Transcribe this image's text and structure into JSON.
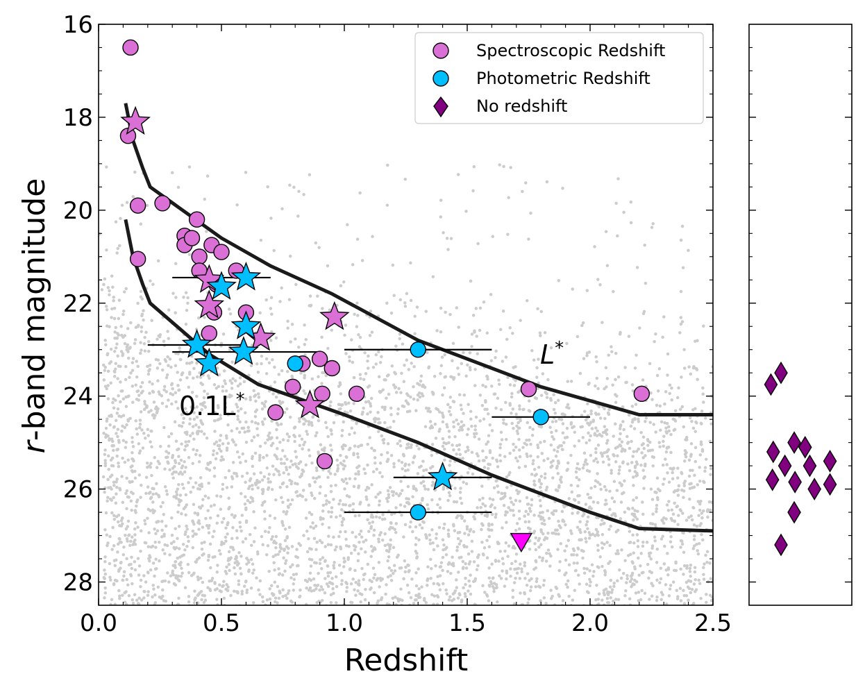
{
  "chart_data": {
    "type": "scatter",
    "xlabel": "Redshift",
    "ylabel_prefix": "r",
    "ylabel_rest": "-band magnitude",
    "xlim": [
      0.0,
      2.5
    ],
    "ylim": [
      28.5,
      16.0
    ],
    "x_ticks": [
      "0.0",
      "0.5",
      "1.0",
      "1.5",
      "2.0",
      "2.5"
    ],
    "x_tick_values": [
      0.0,
      0.5,
      1.0,
      1.5,
      2.0,
      2.5
    ],
    "y_ticks": [
      "16",
      "18",
      "20",
      "22",
      "24",
      "26",
      "28"
    ],
    "y_tick_values": [
      16,
      18,
      20,
      22,
      24,
      26,
      28
    ],
    "legend": {
      "position": "top-right",
      "entries": [
        {
          "label": "Spectroscopic Redshift",
          "marker": "circle",
          "color": "#da70d6"
        },
        {
          "label": "Photometric Redshift",
          "marker": "circle",
          "color": "#00bfff"
        },
        {
          "label": "No redshift",
          "marker": "diamond",
          "color": "#800080"
        }
      ]
    },
    "curves": [
      {
        "name": "L*",
        "label_main": "L",
        "label_sup": "*",
        "x": [
          0.11,
          0.14,
          0.18,
          0.21,
          0.5,
          0.7,
          0.95,
          1.3,
          1.8,
          2.2,
          2.5
        ],
        "y": [
          17.7,
          18.5,
          19.1,
          19.5,
          20.6,
          21.2,
          21.8,
          22.8,
          23.8,
          24.4,
          24.4
        ]
      },
      {
        "name": "0.1L*",
        "label_main": "0.1L",
        "label_sup": "*",
        "x": [
          0.11,
          0.14,
          0.18,
          0.21,
          0.45,
          0.65,
          1.0,
          1.3,
          1.6,
          1.8,
          2.0,
          2.2,
          2.5
        ],
        "y": [
          20.2,
          21.0,
          21.6,
          22.0,
          23.1,
          23.75,
          24.4,
          25.0,
          25.7,
          26.1,
          26.5,
          26.85,
          26.9
        ]
      }
    ],
    "spectroscopic_circles": [
      {
        "x": 0.13,
        "y": 16.5
      },
      {
        "x": 0.12,
        "y": 18.4
      },
      {
        "x": 0.16,
        "y": 19.9
      },
      {
        "x": 0.16,
        "y": 21.05
      },
      {
        "x": 0.26,
        "y": 19.85
      },
      {
        "x": 0.4,
        "y": 20.2
      },
      {
        "x": 0.35,
        "y": 20.55
      },
      {
        "x": 0.35,
        "y": 20.75
      },
      {
        "x": 0.38,
        "y": 20.6
      },
      {
        "x": 0.46,
        "y": 20.75
      },
      {
        "x": 0.5,
        "y": 20.9
      },
      {
        "x": 0.41,
        "y": 21.0
      },
      {
        "x": 0.41,
        "y": 21.3
      },
      {
        "x": 0.56,
        "y": 21.3
      },
      {
        "x": 0.48,
        "y": 21.6
      },
      {
        "x": 0.47,
        "y": 22.2
      },
      {
        "x": 0.6,
        "y": 22.2
      },
      {
        "x": 0.45,
        "y": 22.65
      },
      {
        "x": 0.83,
        "y": 23.3
      },
      {
        "x": 0.9,
        "y": 23.2
      },
      {
        "x": 0.95,
        "y": 23.4
      },
      {
        "x": 0.79,
        "y": 23.8
      },
      {
        "x": 0.91,
        "y": 23.95
      },
      {
        "x": 1.05,
        "y": 23.95
      },
      {
        "x": 0.72,
        "y": 24.35
      },
      {
        "x": 0.92,
        "y": 25.4
      },
      {
        "x": 1.75,
        "y": 23.85
      },
      {
        "x": 2.21,
        "y": 23.95
      }
    ],
    "spectroscopic_stars": [
      {
        "x": 0.15,
        "y": 18.1
      },
      {
        "x": 0.45,
        "y": 21.5
      },
      {
        "x": 0.45,
        "y": 22.05
      },
      {
        "x": 0.66,
        "y": 22.75
      },
      {
        "x": 0.96,
        "y": 22.3
      },
      {
        "x": 0.86,
        "y": 24.2
      }
    ],
    "photometric_circles": [
      {
        "x": 0.8,
        "y": 23.3
      },
      {
        "x": 1.3,
        "y": 23.0,
        "xerr": [
          1.0,
          1.6
        ]
      },
      {
        "x": 1.8,
        "y": 24.45,
        "xerr": [
          1.6,
          2.0
        ]
      },
      {
        "x": 1.3,
        "y": 26.5,
        "xerr": [
          1.0,
          1.6
        ]
      }
    ],
    "photometric_stars": [
      {
        "x": 0.6,
        "y": 21.45,
        "xerr": [
          0.3,
          0.7
        ]
      },
      {
        "x": 0.5,
        "y": 21.65
      },
      {
        "x": 0.4,
        "y": 22.9,
        "xerr": [
          0.2,
          0.6
        ]
      },
      {
        "x": 0.45,
        "y": 23.3
      },
      {
        "x": 0.6,
        "y": 22.5
      },
      {
        "x": 0.59,
        "y": 23.05,
        "xerr": [
          0.3,
          0.9
        ]
      },
      {
        "x": 1.4,
        "y": 25.75,
        "xerr": [
          1.2,
          1.6
        ]
      }
    ],
    "upper_limit": {
      "x": 1.72,
      "y": 27.15,
      "color": "#ff00ff"
    },
    "side_panel": {
      "title": "No redshift",
      "diamonds": [
        {
          "i": 0.12,
          "y": 23.75
        },
        {
          "i": 0.25,
          "y": 23.5
        },
        {
          "i": 0.15,
          "y": 25.2
        },
        {
          "i": 0.42,
          "y": 25.0
        },
        {
          "i": 0.56,
          "y": 25.1
        },
        {
          "i": 0.3,
          "y": 25.5
        },
        {
          "i": 0.14,
          "y": 25.8
        },
        {
          "i": 0.43,
          "y": 25.85
        },
        {
          "i": 0.62,
          "y": 25.5
        },
        {
          "i": 0.68,
          "y": 26.0
        },
        {
          "i": 0.88,
          "y": 25.4
        },
        {
          "i": 0.88,
          "y": 25.9
        },
        {
          "i": 0.42,
          "y": 26.5
        },
        {
          "i": 0.25,
          "y": 27.2
        }
      ]
    },
    "background": {
      "description": "field galaxy photometric catalogue",
      "color": "#cccccc"
    }
  }
}
